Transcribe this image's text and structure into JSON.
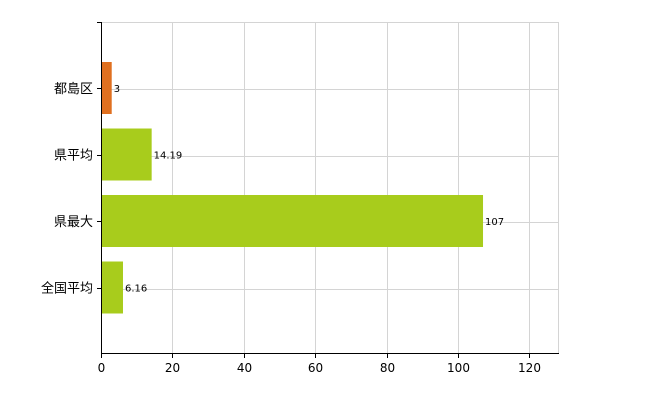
{
  "chart_data": {
    "type": "bar",
    "orientation": "horizontal",
    "categories": [
      "都島区",
      "県平均",
      "県最大",
      "全国平均"
    ],
    "values": [
      3,
      14.19,
      107,
      6.16
    ],
    "data_labels": [
      "3",
      "14.19",
      "107",
      "6.16"
    ],
    "bar_colors": [
      "#e07020",
      "#a8cc1c",
      "#a8cc1c",
      "#a8cc1c"
    ],
    "xlim": [
      0,
      128
    ],
    "xticks": [
      0,
      20,
      40,
      60,
      80,
      100,
      120
    ],
    "xtick_labels": [
      "0",
      "20",
      "40",
      "60",
      "80",
      "100",
      "120"
    ],
    "grid": true,
    "legend": "none"
  }
}
